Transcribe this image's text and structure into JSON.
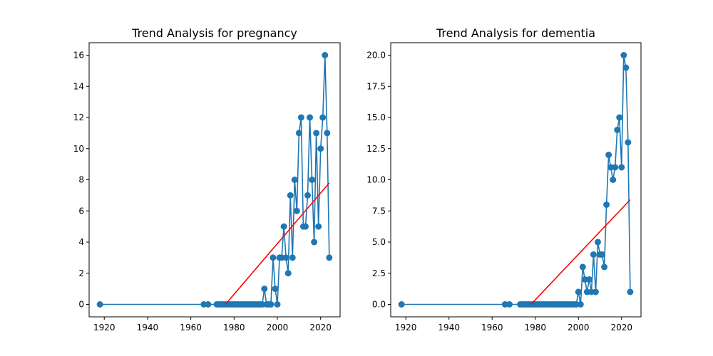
{
  "chart_data": [
    {
      "type": "line",
      "title": "Trend Analysis for pregnancy",
      "xlabel": "",
      "ylabel": "",
      "xlim": [
        1913,
        2029
      ],
      "ylim": [
        -0.8,
        16.8
      ],
      "xticks": [
        1920,
        1940,
        1960,
        1980,
        2000,
        2020
      ],
      "yticks": [
        0,
        2,
        4,
        6,
        8,
        10,
        12,
        14,
        16
      ],
      "grid": false,
      "colors": {
        "data": "#1f77b4",
        "trend": "#ff0000"
      },
      "series": [
        {
          "x": [
            1918,
            1966,
            1968,
            1972,
            1973,
            1974,
            1975,
            1976,
            1977,
            1978,
            1979,
            1980,
            1981,
            1982,
            1983,
            1984,
            1985,
            1986,
            1987,
            1988,
            1989,
            1990,
            1991,
            1992,
            1993,
            1994,
            1995,
            1996,
            1997,
            1998,
            1999,
            2000,
            2001,
            2002,
            2003,
            2004,
            2005,
            2006,
            2007,
            2008,
            2009,
            2010,
            2011,
            2012,
            2013,
            2014,
            2015,
            2016,
            2017,
            2018,
            2019,
            2020,
            2021,
            2022,
            2023,
            2024
          ],
          "y": [
            0,
            0,
            0,
            0,
            0,
            0,
            0,
            0,
            0,
            0,
            0,
            0,
            0,
            0,
            0,
            0,
            0,
            0,
            0,
            0,
            0,
            0,
            0,
            0,
            0,
            1,
            0,
            0,
            0,
            3,
            1,
            0,
            3,
            3,
            5,
            3,
            2,
            7,
            3,
            8,
            6,
            11,
            12,
            5,
            5,
            7,
            12,
            8,
            4,
            11,
            5,
            10,
            12,
            16,
            11,
            3
          ]
        },
        {
          "x": [
            1976,
            2024
          ],
          "y": [
            0,
            7.8
          ]
        }
      ]
    },
    {
      "type": "line",
      "title": "Trend Analysis for dementia",
      "xlabel": "",
      "ylabel": "",
      "xlim": [
        1913,
        2029
      ],
      "ylim": [
        -1.0,
        21.0
      ],
      "xticks": [
        1920,
        1940,
        1960,
        1980,
        2000,
        2020
      ],
      "yticks": [
        0,
        2.5,
        5,
        7.5,
        10,
        12.5,
        15,
        17.5,
        20
      ],
      "ytick_labels": [
        "0.0",
        "2.5",
        "5.0",
        "7.5",
        "10.0",
        "12.5",
        "15.0",
        "17.5",
        "20.0"
      ],
      "grid": false,
      "colors": {
        "data": "#1f77b4",
        "trend": "#ff0000"
      },
      "series": [
        {
          "x": [
            1918,
            1966,
            1968,
            1973,
            1974,
            1975,
            1976,
            1977,
            1978,
            1979,
            1980,
            1981,
            1982,
            1983,
            1984,
            1985,
            1986,
            1987,
            1988,
            1989,
            1990,
            1991,
            1992,
            1993,
            1994,
            1995,
            1996,
            1997,
            1998,
            1999,
            2000,
            2001,
            2002,
            2003,
            2004,
            2005,
            2006,
            2007,
            2008,
            2009,
            2010,
            2011,
            2012,
            2013,
            2014,
            2015,
            2016,
            2017,
            2018,
            2019,
            2020,
            2021,
            2022,
            2023,
            2024
          ],
          "y": [
            0,
            0,
            0,
            0,
            0,
            0,
            0,
            0,
            0,
            0,
            0,
            0,
            0,
            0,
            0,
            0,
            0,
            0,
            0,
            0,
            0,
            0,
            0,
            0,
            0,
            0,
            0,
            0,
            0,
            0,
            1,
            0,
            3,
            2,
            1,
            2,
            1,
            4,
            1,
            5,
            4,
            4,
            3,
            8,
            12,
            11,
            10,
            11,
            14,
            15,
            11,
            20,
            19,
            13,
            1
          ]
        },
        {
          "x": [
            1978,
            2024
          ],
          "y": [
            0,
            8.4
          ]
        }
      ]
    }
  ]
}
